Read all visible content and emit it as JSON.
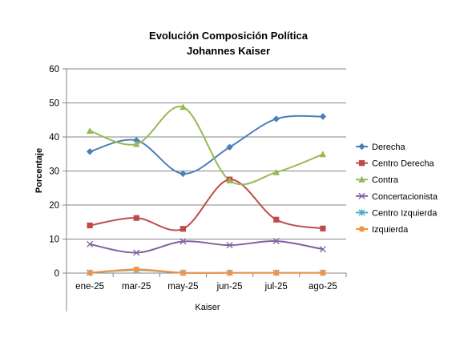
{
  "chart_data": {
    "type": "line",
    "title": "Evolución Composición Política",
    "subtitle": "Johannes Kaiser",
    "xlabel": "Kaiser",
    "ylabel": "Porcentaje",
    "ylim": [
      0,
      60
    ],
    "yticks": [
      0,
      10,
      20,
      30,
      40,
      50,
      60
    ],
    "grid": true,
    "smooth": true,
    "legend_position": "right",
    "categories": [
      "ene-25",
      "mar-25",
      "may-25",
      "jun-25",
      "jul-25",
      "ago-25"
    ],
    "series": [
      {
        "name": "Derecha",
        "values": [
          35.7,
          39.0,
          29.2,
          37.0,
          45.3,
          46.0
        ],
        "color": "#4A7EBB",
        "marker": "diamond"
      },
      {
        "name": "Centro Derecha",
        "values": [
          14.0,
          16.2,
          13.0,
          27.5,
          15.7,
          13.1
        ],
        "color": "#BE4B48",
        "marker": "square"
      },
      {
        "name": "Contra",
        "values": [
          41.8,
          37.9,
          48.8,
          27.2,
          29.6,
          34.9
        ],
        "color": "#98B954",
        "marker": "triangle"
      },
      {
        "name": "Concertacionista",
        "values": [
          8.5,
          6.0,
          9.3,
          8.2,
          9.4,
          7.0
        ],
        "color": "#7D60A0",
        "marker": "x"
      },
      {
        "name": "Centro Izquierda",
        "values": [
          0.1,
          0.9,
          0.1,
          0.1,
          0.1,
          0.1
        ],
        "color": "#46AAC5",
        "marker": "star"
      },
      {
        "name": "Izquierda",
        "values": [
          0.1,
          1.1,
          0.1,
          0.1,
          0.1,
          0.1
        ],
        "color": "#F69240",
        "marker": "circle"
      }
    ]
  }
}
